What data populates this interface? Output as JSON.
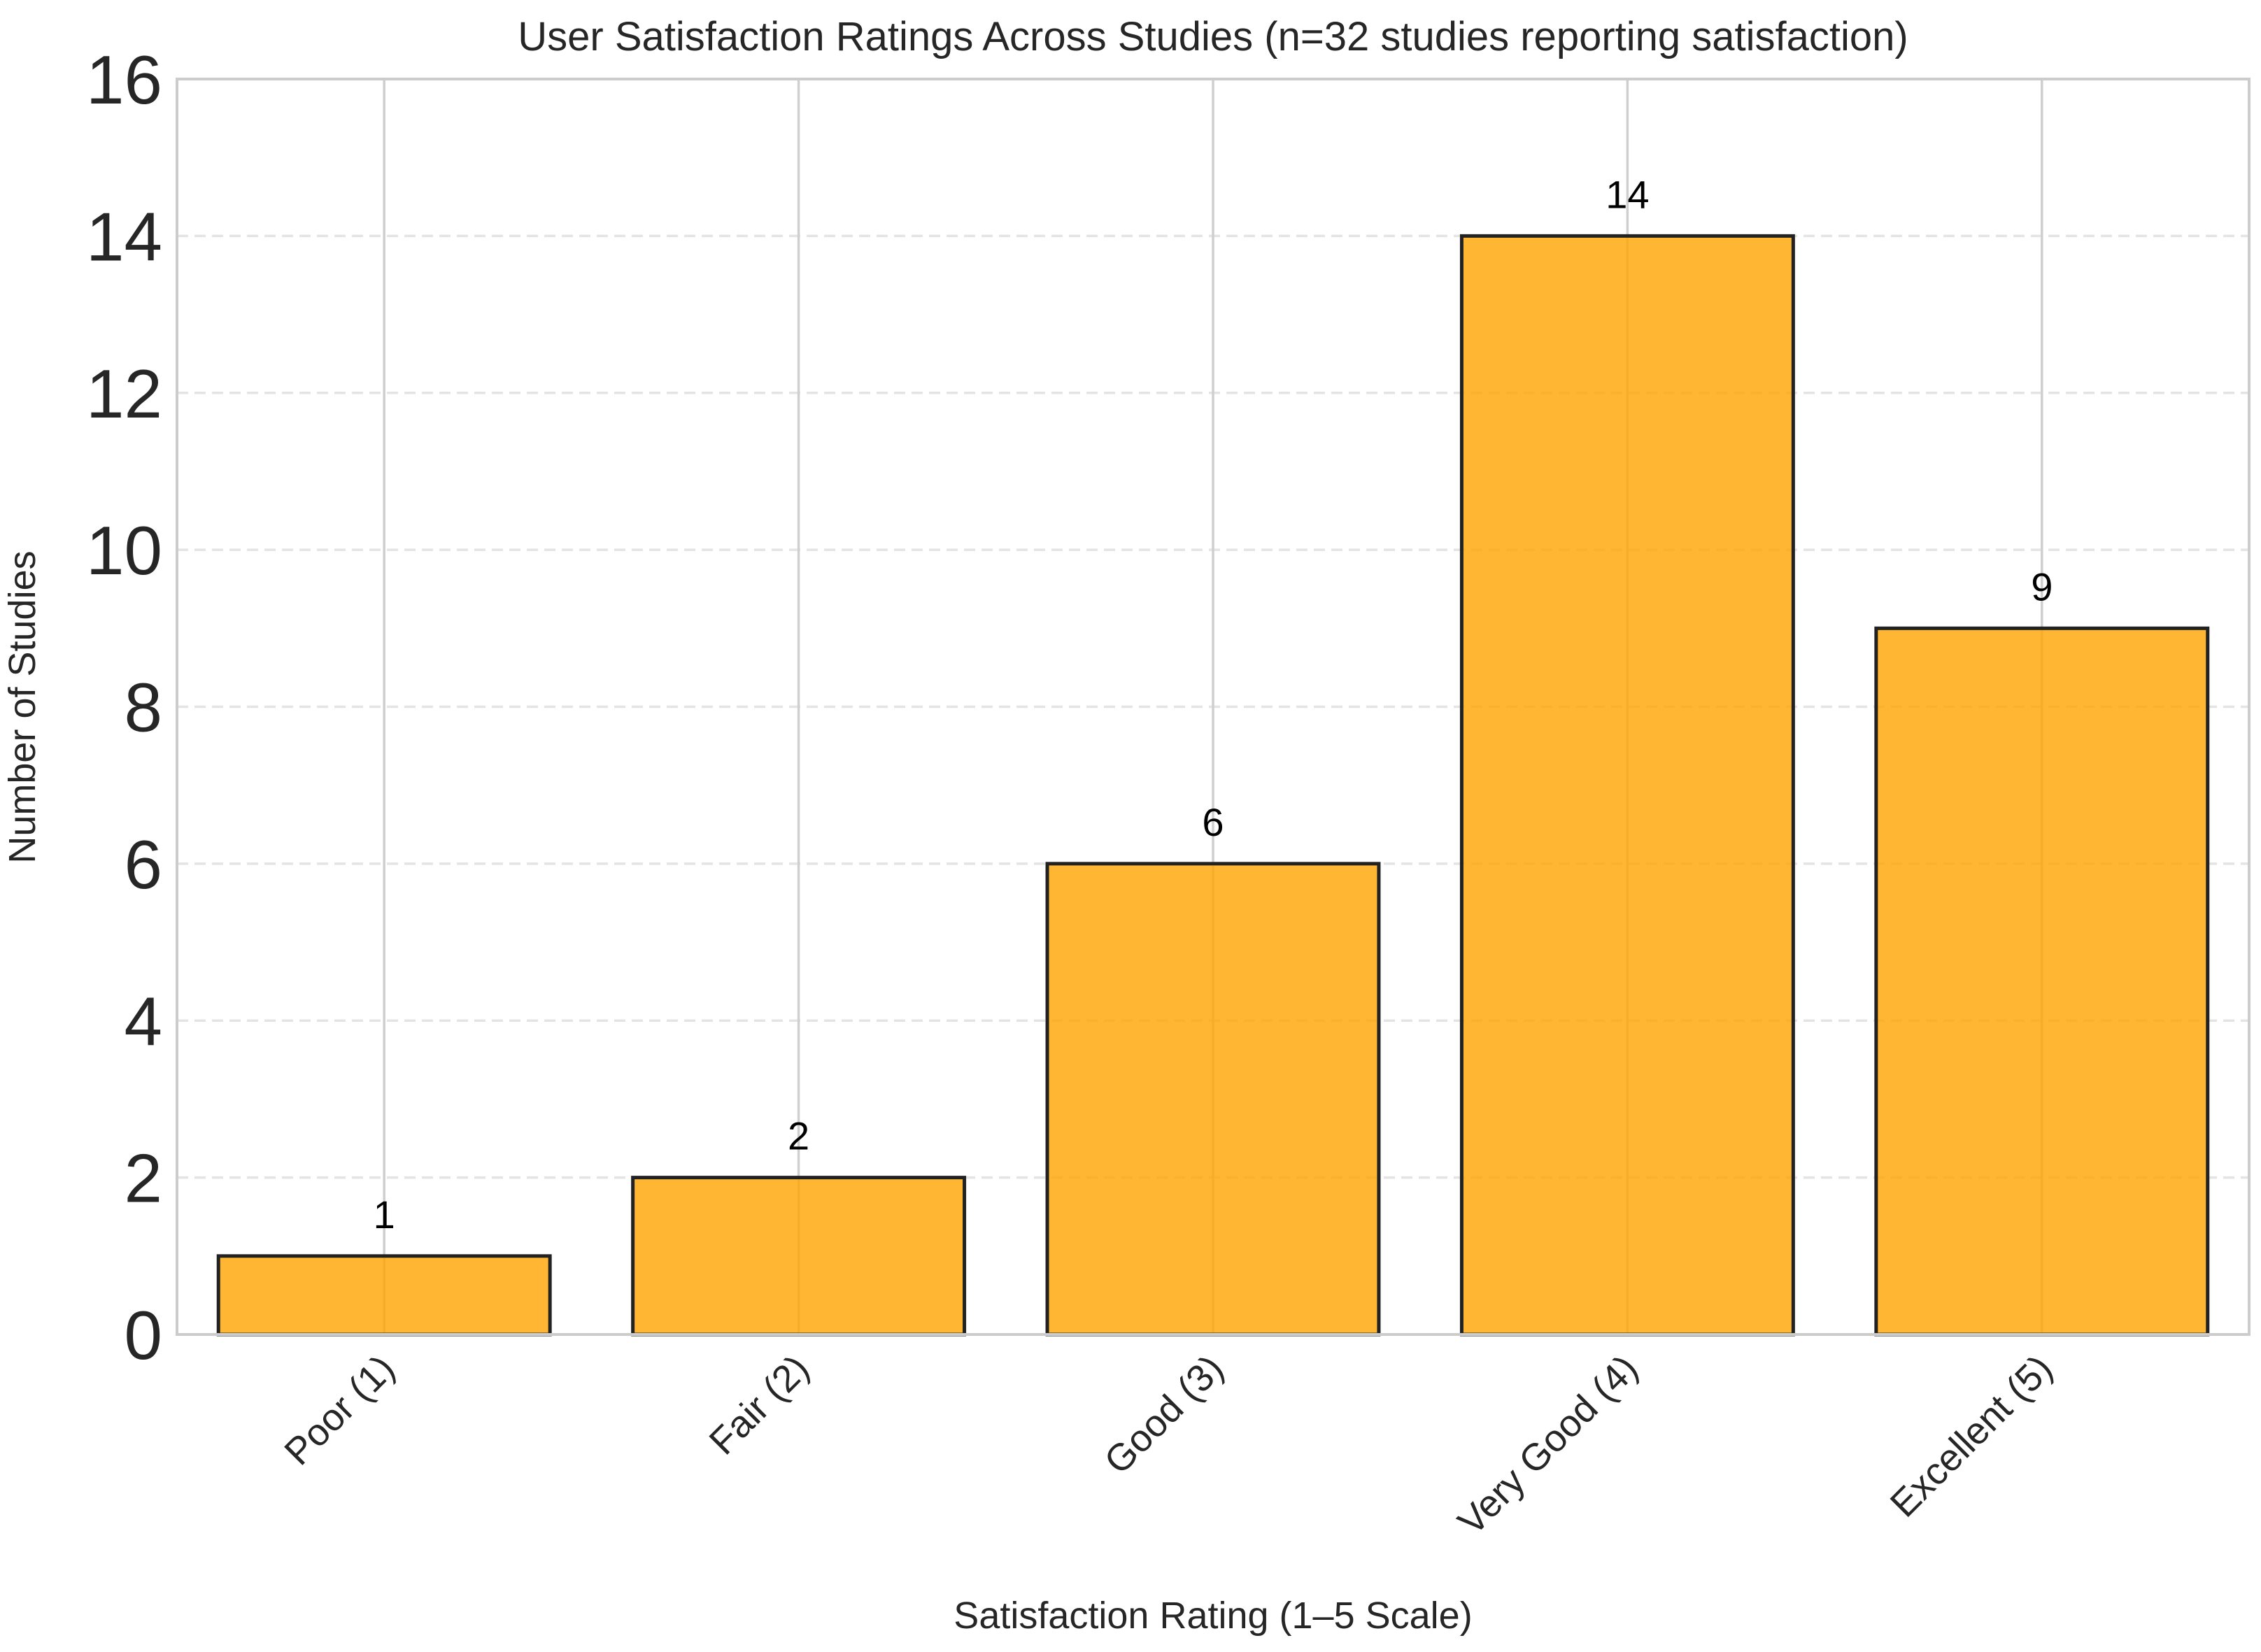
{
  "chart_data": {
    "type": "bar",
    "title": "User Satisfaction Ratings Across Studies (n=32 studies reporting satisfaction)",
    "xlabel": "Satisfaction Rating (1–5 Scale)",
    "ylabel": "Number of Studies",
    "categories": [
      "Poor (1)",
      "Fair (2)",
      "Good (3)",
      "Very Good (4)",
      "Excellent (5)"
    ],
    "values": [
      1,
      2,
      6,
      14,
      9
    ],
    "data_labels": [
      "1",
      "2",
      "6",
      "14",
      "9"
    ],
    "ylim": [
      0,
      16
    ],
    "yticks": [
      0,
      2,
      4,
      6,
      8,
      10,
      12,
      14,
      16
    ],
    "bar_color": "#FFA500",
    "grid": true,
    "xtick_rotation": 45
  }
}
